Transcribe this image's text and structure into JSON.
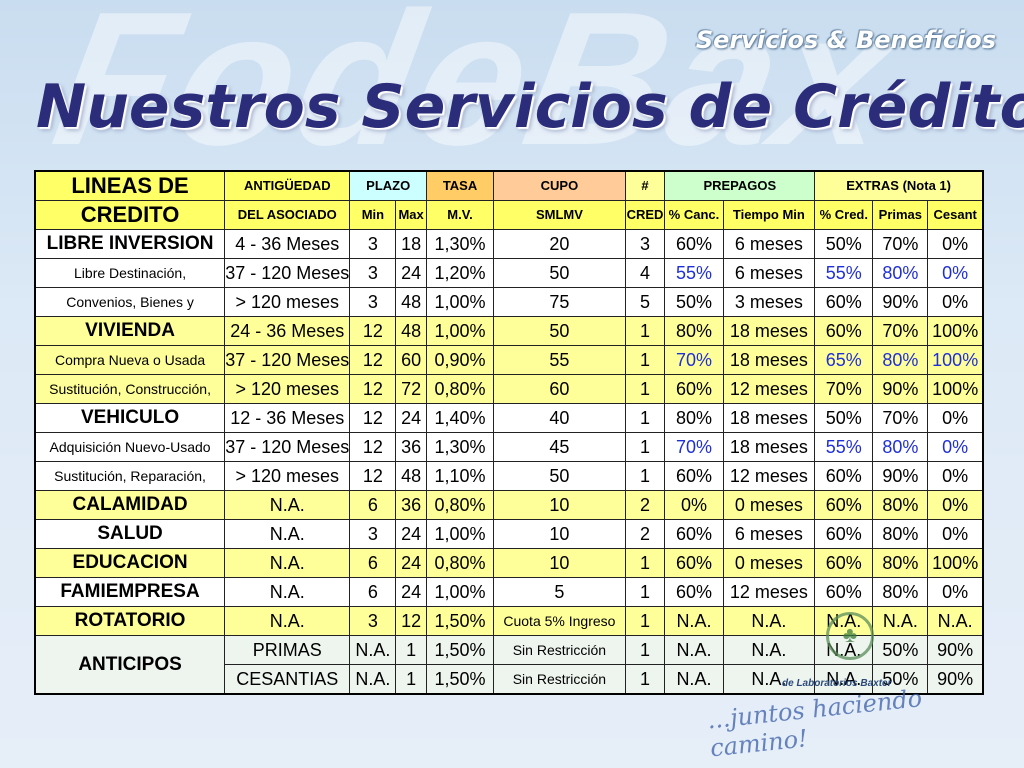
{
  "header": {
    "brand": "Servicios & Beneficios",
    "title": "Nuestros Servicios de Crédito",
    "watermark": "FodeBax"
  },
  "table": {
    "header_row1": {
      "label": "LINEAS DE",
      "antiguedad": "ANTIGÜEDAD",
      "plazo": "PLAZO",
      "tasa": "TASA",
      "cupo": "CUPO",
      "num": "#",
      "prepagos": "PREPAGOS",
      "extras": "EXTRAS (Nota 1)"
    },
    "header_row2": {
      "label": "CREDITO",
      "asociado": "DEL ASOCIADO",
      "min": "Min",
      "max": "Max",
      "mv": "M.V.",
      "smlmv": "SMLMV",
      "cred": "CRED",
      "canc": "% Canc.",
      "tiempo": "Tiempo Min",
      "pct_cred": "% Cred.",
      "primas": "Primas",
      "cesant": "Cesant"
    },
    "rows": [
      {
        "name": "LIBRE INVERSION",
        "ant": "4 - 36 Meses",
        "min": "3",
        "max": "18",
        "tasa": "1,30%",
        "cupo": "20",
        "num": "3",
        "canc": "60%",
        "tiempo": "6 meses",
        "cred": "50%",
        "primas": "70%",
        "cesant": "0%"
      },
      {
        "name": "Libre Destinación,",
        "ant": "37 - 120 Meses",
        "min": "3",
        "max": "24",
        "tasa": "1,20%",
        "cupo": "50",
        "num": "4",
        "canc": "55%",
        "tiempo": "6 meses",
        "cred": "55%",
        "primas": "80%",
        "cesant": "0%"
      },
      {
        "name": "Convenios, Bienes y",
        "ant": "> 120 meses",
        "min": "3",
        "max": "48",
        "tasa": "1,00%",
        "cupo": "75",
        "num": "5",
        "canc": "50%",
        "tiempo": "3 meses",
        "cred": "60%",
        "primas": "90%",
        "cesant": "0%"
      },
      {
        "name": "VIVIENDA",
        "ant": "24 - 36 Meses",
        "min": "12",
        "max": "48",
        "tasa": "1,00%",
        "cupo": "50",
        "num": "1",
        "canc": "80%",
        "tiempo": "18 meses",
        "cred": "60%",
        "primas": "70%",
        "cesant": "100%"
      },
      {
        "name": "Compra Nueva o Usada",
        "ant": "37 - 120 Meses",
        "min": "12",
        "max": "60",
        "tasa": "0,90%",
        "cupo": "55",
        "num": "1",
        "canc": "70%",
        "tiempo": "18 meses",
        "cred": "65%",
        "primas": "80%",
        "cesant": "100%"
      },
      {
        "name": "Sustitución, Construcción,",
        "ant": "> 120 meses",
        "min": "12",
        "max": "72",
        "tasa": "0,80%",
        "cupo": "60",
        "num": "1",
        "canc": "60%",
        "tiempo": "12 meses",
        "cred": "70%",
        "primas": "90%",
        "cesant": "100%"
      },
      {
        "name": "VEHICULO",
        "ant": "12 - 36 Meses",
        "min": "12",
        "max": "24",
        "tasa": "1,40%",
        "cupo": "40",
        "num": "1",
        "canc": "80%",
        "tiempo": "18 meses",
        "cred": "50%",
        "primas": "70%",
        "cesant": "0%"
      },
      {
        "name": "Adquisición Nuevo-Usado",
        "ant": "37 - 120 Meses",
        "min": "12",
        "max": "36",
        "tasa": "1,30%",
        "cupo": "45",
        "num": "1",
        "canc": "70%",
        "tiempo": "18 meses",
        "cred": "55%",
        "primas": "80%",
        "cesant": "0%"
      },
      {
        "name": "Sustitución, Reparación,",
        "ant": "> 120 meses",
        "min": "12",
        "max": "48",
        "tasa": "1,10%",
        "cupo": "50",
        "num": "1",
        "canc": "60%",
        "tiempo": "12 meses",
        "cred": "60%",
        "primas": "90%",
        "cesant": "0%"
      },
      {
        "name": "CALAMIDAD",
        "ant": "N.A.",
        "min": "6",
        "max": "36",
        "tasa": "0,80%",
        "cupo": "10",
        "num": "2",
        "canc": "0%",
        "tiempo": "0 meses",
        "cred": "60%",
        "primas": "80%",
        "cesant": "0%"
      },
      {
        "name": "SALUD",
        "ant": "N.A.",
        "min": "3",
        "max": "24",
        "tasa": "1,00%",
        "cupo": "10",
        "num": "2",
        "canc": "60%",
        "tiempo": "6 meses",
        "cred": "60%",
        "primas": "80%",
        "cesant": "0%"
      },
      {
        "name": "EDUCACION",
        "ant": "N.A.",
        "min": "6",
        "max": "24",
        "tasa": "0,80%",
        "cupo": "10",
        "num": "1",
        "canc": "60%",
        "tiempo": "0 meses",
        "cred": "60%",
        "primas": "80%",
        "cesant": "100%"
      },
      {
        "name": "FAMIEMPRESA",
        "ant": "N.A.",
        "min": "6",
        "max": "24",
        "tasa": "1,00%",
        "cupo": "5",
        "num": "1",
        "canc": "60%",
        "tiempo": "12 meses",
        "cred": "60%",
        "primas": "80%",
        "cesant": "0%"
      },
      {
        "name": "ROTATORIO",
        "ant": "N.A.",
        "min": "3",
        "max": "12",
        "tasa": "1,50%",
        "cupo": "Cuota 5% Ingreso",
        "num": "1",
        "canc": "N.A.",
        "tiempo": "N.A.",
        "cred": "N.A.",
        "primas": "N.A.",
        "cesant": "N.A."
      },
      {
        "name": "ANTICIPOS",
        "ant": "PRIMAS",
        "min": "N.A.",
        "max": "1",
        "tasa": "1,50%",
        "cupo": "Sin Restricción",
        "num": "1",
        "canc": "N.A.",
        "tiempo": "N.A.",
        "cred": "N.A.",
        "primas": "50%",
        "cesant": "90%"
      },
      {
        "ant": "CESANTIAS",
        "min": "N.A.",
        "max": "1",
        "tasa": "1,50%",
        "cupo": "Sin Restricción",
        "num": "1",
        "canc": "N.A.",
        "tiempo": "N.A.",
        "cred": "N.A.",
        "primas": "50%",
        "cesant": "90%"
      }
    ]
  },
  "footer": {
    "sub": "de Laboratorios Baxter",
    "slogan": "...juntos haciendo camino!"
  },
  "colors": {
    "title": "#2b2c7a",
    "highlight_blue": "#1f2fd6",
    "yellow": "#ffff99"
  }
}
